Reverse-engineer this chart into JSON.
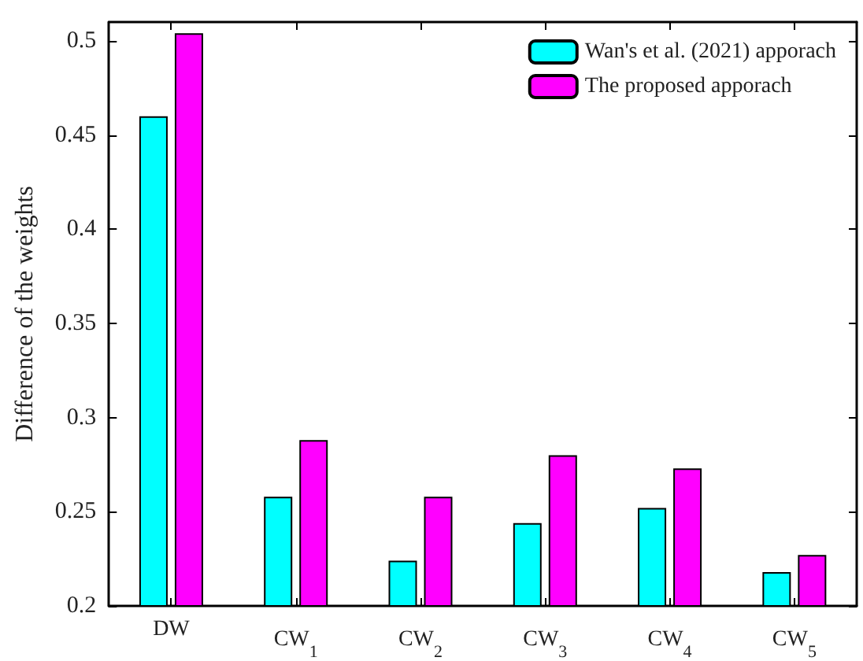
{
  "chart_data": {
    "type": "bar",
    "ylabel": "Difference of the weights",
    "categories": [
      "DW",
      "CW$_{1}$",
      "CW$_{2}$",
      "CW$_{3}$",
      "CW$_{4}$",
      "CW$_{5}$"
    ],
    "series": [
      {
        "name": "Wan's et al. (2021) apporach",
        "color": "#00ffff",
        "values": [
          0.46,
          0.258,
          0.224,
          0.244,
          0.252,
          0.218
        ]
      },
      {
        "name": "The proposed apporach",
        "color": "#ff00ff",
        "values": [
          0.504,
          0.288,
          0.258,
          0.28,
          0.273,
          0.227
        ]
      }
    ],
    "ylim": [
      0.2,
      0.51
    ],
    "yticks": [
      0.2,
      0.25,
      0.3,
      0.35,
      0.4,
      0.45,
      0.5
    ],
    "grid": false,
    "legend": "top right"
  }
}
